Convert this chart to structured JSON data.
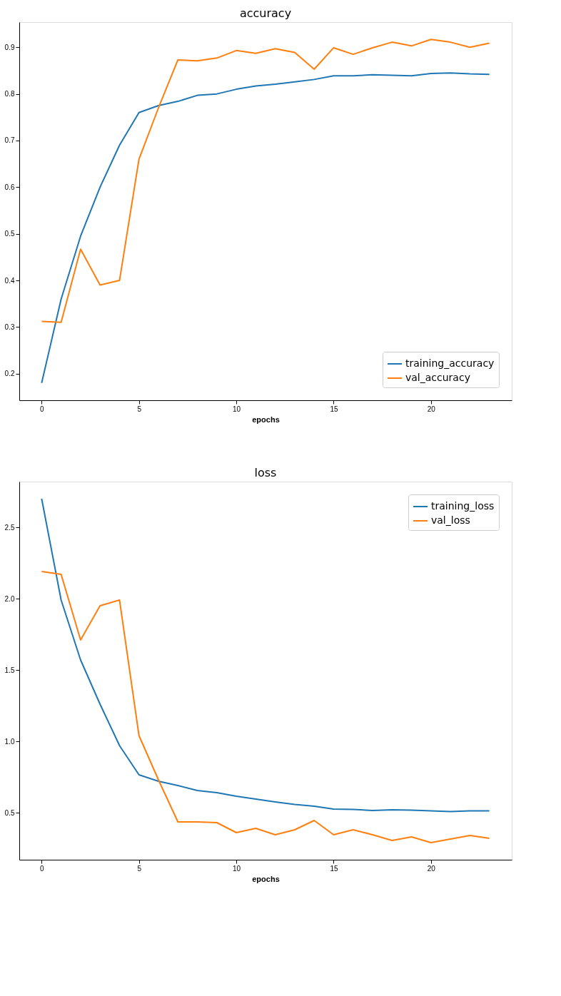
{
  "chart_data": [
    {
      "type": "line",
      "title": "accuracy",
      "xlabel": "epochs",
      "x": [
        0,
        1,
        2,
        3,
        4,
        5,
        6,
        7,
        8,
        9,
        10,
        11,
        12,
        13,
        14,
        15,
        16,
        17,
        18,
        19,
        20,
        21,
        22,
        23
      ],
      "series": [
        {
          "name": "training_accuracy",
          "color": "#1f77b4",
          "values": [
            0.18,
            0.36,
            0.495,
            0.6,
            0.69,
            0.76,
            0.775,
            0.784,
            0.797,
            0.8,
            0.81,
            0.817,
            0.821,
            0.826,
            0.831,
            0.839,
            0.839,
            0.841,
            0.84,
            0.839,
            0.844,
            0.845,
            0.843,
            0.842
          ]
        },
        {
          "name": "val_accuracy",
          "color": "#ff7f0e",
          "values": [
            0.312,
            0.31,
            0.467,
            0.39,
            0.4,
            0.66,
            0.77,
            0.873,
            0.871,
            0.877,
            0.893,
            0.887,
            0.897,
            0.889,
            0.853,
            0.899,
            0.885,
            0.899,
            0.911,
            0.903,
            0.917,
            0.911,
            0.9,
            0.909
          ]
        }
      ],
      "xlim": [
        -1.15,
        24.15
      ],
      "xticks": [
        0,
        5,
        10,
        15,
        20
      ],
      "ylim": [
        0.143,
        0.954
      ],
      "yticks": [
        0.2,
        0.3,
        0.4,
        0.5,
        0.6,
        0.7,
        0.8,
        0.9
      ],
      "grid": false,
      "legend": "bottom right"
    },
    {
      "type": "line",
      "title": "loss",
      "xlabel": "epochs",
      "x": [
        0,
        1,
        2,
        3,
        4,
        5,
        6,
        7,
        8,
        9,
        10,
        11,
        12,
        13,
        14,
        15,
        16,
        17,
        18,
        19,
        20,
        21,
        22,
        23
      ],
      "series": [
        {
          "name": "training_loss",
          "color": "#1f77b4",
          "values": [
            2.7,
            1.99,
            1.57,
            1.26,
            0.97,
            0.765,
            0.72,
            0.69,
            0.655,
            0.64,
            0.615,
            0.595,
            0.575,
            0.558,
            0.545,
            0.525,
            0.523,
            0.515,
            0.52,
            0.518,
            0.512,
            0.508,
            0.513,
            0.512
          ]
        },
        {
          "name": "val_loss",
          "color": "#ff7f0e",
          "values": [
            2.19,
            2.17,
            1.71,
            1.95,
            1.99,
            1.04,
            0.73,
            0.435,
            0.435,
            0.43,
            0.36,
            0.39,
            0.345,
            0.38,
            0.445,
            0.345,
            0.38,
            0.345,
            0.305,
            0.33,
            0.29,
            0.315,
            0.34,
            0.32
          ]
        }
      ],
      "xlim": [
        -1.15,
        24.15
      ],
      "xticks": [
        0,
        5,
        10,
        15,
        20
      ],
      "ylim": [
        0.17,
        2.82
      ],
      "yticks": [
        0.5,
        {
          "value": 1,
          "label": "1.0"
        },
        1.5,
        {
          "value": 2,
          "label": "2.0"
        },
        2.5
      ],
      "grid": false,
      "legend": "top right"
    }
  ]
}
